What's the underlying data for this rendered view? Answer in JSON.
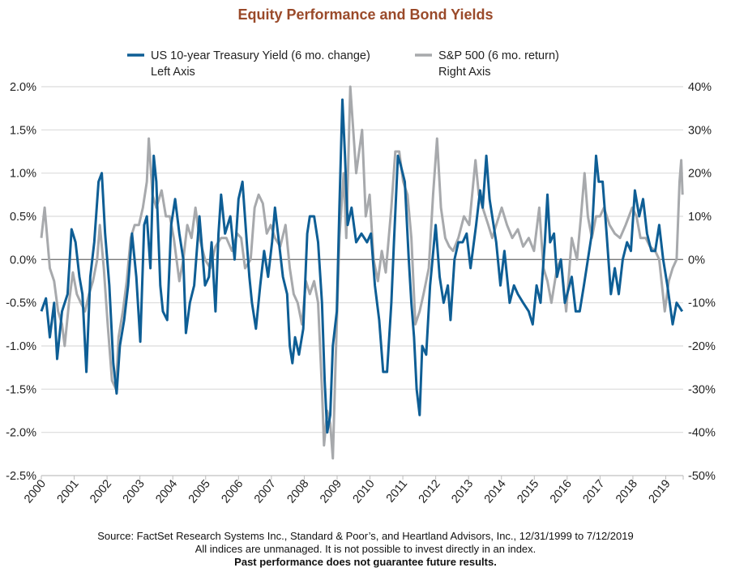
{
  "chart_data": {
    "type": "line",
    "title": "Equity Performance and Bond Yields",
    "legend_position": "top",
    "grid": true,
    "xlim": [
      2000,
      2019.53
    ],
    "x_ticks": [
      "2000",
      "2001",
      "2002",
      "2003",
      "2004",
      "2005",
      "2006",
      "2007",
      "2008",
      "2009",
      "2010",
      "2011",
      "2012",
      "2013",
      "2014",
      "2015",
      "2016",
      "2017",
      "2018",
      "2019"
    ],
    "left_axis": {
      "ylim": [
        -2.5,
        2.0
      ],
      "ticks": [
        "2.0%",
        "1.5%",
        "1.0%",
        "0.5%",
        "0.0%",
        "-0.5%",
        "-1.0%",
        "-1.5%",
        "-2.0%",
        "-2.5%"
      ]
    },
    "right_axis": {
      "ylim": [
        -50,
        40
      ],
      "ticks": [
        "40%",
        "30%",
        "20%",
        "10%",
        "0%",
        "-10%",
        "-20%",
        "-30%",
        "-40%",
        "-50%"
      ]
    },
    "series": [
      {
        "name": "US 10-year Treasury Yield (6 mo. change)",
        "axis_label": "Left Axis",
        "axis": "left",
        "color": "#0e5e95",
        "x": [
          2000.0,
          2000.14,
          2000.26,
          2000.39,
          2000.48,
          2000.63,
          2000.8,
          2000.92,
          2001.04,
          2001.16,
          2001.25,
          2001.37,
          2001.49,
          2001.61,
          2001.74,
          2001.84,
          2001.94,
          2002.07,
          2002.19,
          2002.29,
          2002.39,
          2002.52,
          2002.64,
          2002.76,
          2002.89,
          2003.01,
          2003.13,
          2003.21,
          2003.32,
          2003.42,
          2003.5,
          2003.62,
          2003.7,
          2003.83,
          2003.95,
          2004.07,
          2004.2,
          2004.32,
          2004.4,
          2004.52,
          2004.65,
          2004.81,
          2004.98,
          2005.1,
          2005.18,
          2005.3,
          2005.39,
          2005.47,
          2005.59,
          2005.75,
          2005.88,
          2006.0,
          2006.12,
          2006.25,
          2006.33,
          2006.41,
          2006.53,
          2006.66,
          2006.78,
          2006.9,
          2007.02,
          2007.11,
          2007.23,
          2007.35,
          2007.48,
          2007.56,
          2007.64,
          2007.72,
          2007.84,
          2007.97,
          2008.09,
          2008.17,
          2008.3,
          2008.42,
          2008.54,
          2008.62,
          2008.7,
          2008.79,
          2008.87,
          2008.99,
          2009.07,
          2009.16,
          2009.24,
          2009.32,
          2009.44,
          2009.58,
          2009.74,
          2009.91,
          2010.03,
          2010.15,
          2010.28,
          2010.4,
          2010.52,
          2010.65,
          2010.73,
          2010.85,
          2010.93,
          2011.06,
          2011.18,
          2011.26,
          2011.34,
          2011.42,
          2011.51,
          2011.59,
          2011.71,
          2011.83,
          2012.0,
          2012.12,
          2012.24,
          2012.37,
          2012.45,
          2012.57,
          2012.69,
          2012.82,
          2012.94,
          2013.06,
          2013.23,
          2013.35,
          2013.43,
          2013.54,
          2013.64,
          2013.76,
          2013.84,
          2013.97,
          2014.09,
          2014.25,
          2014.38,
          2014.5,
          2014.66,
          2014.83,
          2014.95,
          2015.07,
          2015.19,
          2015.32,
          2015.4,
          2015.48,
          2015.6,
          2015.69,
          2015.81,
          2015.93,
          2016.14,
          2016.26,
          2016.38,
          2016.51,
          2016.63,
          2016.75,
          2016.88,
          2016.96,
          2017.08,
          2017.2,
          2017.33,
          2017.45,
          2017.57,
          2017.69,
          2017.82,
          2017.94,
          2018.06,
          2018.19,
          2018.31,
          2018.43,
          2018.56,
          2018.68,
          2018.8,
          2018.92,
          2019.05,
          2019.21,
          2019.33,
          2019.5
        ],
        "values": [
          -0.6,
          -0.45,
          -0.9,
          -0.5,
          -1.15,
          -0.6,
          -0.4,
          0.35,
          0.2,
          -0.2,
          -0.4,
          -1.3,
          -0.2,
          0.2,
          0.9,
          1.0,
          0.3,
          -0.3,
          -1.2,
          -1.55,
          -1.0,
          -0.7,
          -0.3,
          0.3,
          -0.2,
          -0.95,
          0.4,
          0.5,
          -0.1,
          1.2,
          0.9,
          -0.3,
          -0.6,
          -0.7,
          0.4,
          0.7,
          0.3,
          0.0,
          -0.85,
          -0.5,
          -0.3,
          0.5,
          -0.3,
          -0.2,
          0.2,
          -0.6,
          0.3,
          0.75,
          0.3,
          0.5,
          0.0,
          0.7,
          0.9,
          0.2,
          -0.2,
          -0.5,
          -0.8,
          -0.3,
          0.1,
          -0.2,
          0.2,
          0.6,
          0.2,
          -0.2,
          -0.4,
          -1.0,
          -1.2,
          -0.9,
          -1.1,
          -0.8,
          0.3,
          0.5,
          0.5,
          0.2,
          -0.5,
          -1.4,
          -2.0,
          -1.8,
          -1.0,
          -0.6,
          0.6,
          1.85,
          1.2,
          0.4,
          0.6,
          0.2,
          0.3,
          0.2,
          0.3,
          -0.3,
          -0.7,
          -1.3,
          -1.3,
          -0.5,
          0.2,
          1.2,
          1.1,
          0.9,
          0.0,
          -0.5,
          -0.9,
          -1.5,
          -1.8,
          -1.0,
          -1.1,
          -0.3,
          0.4,
          -0.2,
          -0.5,
          -0.3,
          -0.7,
          0.0,
          0.2,
          0.2,
          0.3,
          -0.1,
          0.4,
          0.8,
          0.6,
          1.2,
          0.7,
          0.4,
          0.2,
          -0.3,
          0.1,
          -0.5,
          -0.3,
          -0.4,
          -0.5,
          -0.6,
          -0.75,
          -0.3,
          -0.5,
          0.2,
          0.75,
          0.2,
          0.3,
          -0.2,
          0.0,
          -0.5,
          -0.2,
          -0.6,
          -0.6,
          -0.3,
          0.0,
          0.3,
          1.2,
          0.9,
          0.9,
          0.3,
          -0.4,
          -0.1,
          -0.4,
          0.0,
          0.2,
          0.1,
          0.8,
          0.5,
          0.7,
          0.3,
          0.1,
          0.1,
          0.4,
          0.0,
          -0.3,
          -0.75,
          -0.5,
          -0.6
        ]
      },
      {
        "name": "S&P 500 (6 mo. return)",
        "axis_label": "Right Axis",
        "axis": "right",
        "color": "#a7a9ac",
        "x": [
          2000.0,
          2000.1,
          2000.18,
          2000.26,
          2000.39,
          2000.51,
          2000.63,
          2000.71,
          2000.84,
          2000.96,
          2001.08,
          2001.2,
          2001.33,
          2001.45,
          2001.57,
          2001.7,
          2001.78,
          2001.9,
          2002.02,
          2002.15,
          2002.27,
          2002.35,
          2002.48,
          2002.6,
          2002.72,
          2002.84,
          2002.97,
          2003.09,
          2003.21,
          2003.27,
          2003.38,
          2003.5,
          2003.66,
          2003.79,
          2003.91,
          2004.03,
          2004.2,
          2004.32,
          2004.44,
          2004.57,
          2004.69,
          2004.81,
          2004.98,
          2005.14,
          2005.3,
          2005.47,
          2005.63,
          2005.8,
          2005.96,
          2006.08,
          2006.2,
          2006.37,
          2006.49,
          2006.61,
          2006.74,
          2006.86,
          2006.98,
          2007.11,
          2007.27,
          2007.43,
          2007.56,
          2007.68,
          2007.8,
          2007.93,
          2008.05,
          2008.17,
          2008.3,
          2008.42,
          2008.54,
          2008.6,
          2008.7,
          2008.79,
          2008.87,
          2008.95,
          2009.07,
          2009.2,
          2009.28,
          2009.4,
          2009.58,
          2009.76,
          2009.87,
          2009.99,
          2010.11,
          2010.24,
          2010.36,
          2010.48,
          2010.65,
          2010.77,
          2010.89,
          2011.01,
          2011.14,
          2011.26,
          2011.38,
          2011.51,
          2011.63,
          2011.79,
          2011.92,
          2012.04,
          2012.16,
          2012.29,
          2012.41,
          2012.53,
          2012.69,
          2012.86,
          2013.02,
          2013.21,
          2013.31,
          2013.43,
          2013.6,
          2013.72,
          2013.84,
          2014.01,
          2014.17,
          2014.33,
          2014.5,
          2014.66,
          2014.83,
          2014.99,
          2015.15,
          2015.28,
          2015.4,
          2015.52,
          2015.69,
          2015.81,
          2015.97,
          2016.14,
          2016.3,
          2016.42,
          2016.53,
          2016.63,
          2016.75,
          2016.88,
          2017.0,
          2017.12,
          2017.29,
          2017.45,
          2017.61,
          2017.78,
          2017.98,
          2018.11,
          2018.23,
          2018.39,
          2018.52,
          2018.68,
          2018.8,
          2018.97,
          2019.09,
          2019.21,
          2019.33,
          2019.42,
          2019.47,
          2019.51
        ],
        "values": [
          5,
          12,
          5,
          -2,
          -5,
          -12,
          -15,
          -20,
          -10,
          -3,
          -8,
          -10,
          -12,
          -8,
          -5,
          0,
          8,
          -2,
          -15,
          -28,
          -30,
          -18,
          -12,
          -5,
          5,
          8,
          8,
          12,
          18,
          28,
          15,
          12,
          16,
          10,
          10,
          5,
          -5,
          0,
          8,
          5,
          12,
          5,
          0,
          -2,
          3,
          5,
          5,
          2,
          6,
          5,
          -2,
          0,
          12,
          15,
          13,
          6,
          8,
          5,
          3,
          8,
          -2,
          -8,
          -10,
          -15,
          -5,
          -8,
          -5,
          -10,
          -30,
          -43,
          -35,
          -38,
          -46,
          -25,
          5,
          20,
          5,
          40,
          20,
          30,
          10,
          15,
          0,
          -5,
          2,
          -3,
          12,
          25,
          25,
          18,
          15,
          5,
          -15,
          -12,
          -8,
          -2,
          15,
          28,
          12,
          5,
          3,
          2,
          5,
          10,
          8,
          23,
          15,
          12,
          8,
          5,
          8,
          12,
          8,
          5,
          7,
          3,
          5,
          2,
          12,
          -2,
          -5,
          -10,
          -2,
          0,
          -12,
          5,
          0,
          10,
          20,
          10,
          5,
          10,
          10,
          12,
          8,
          6,
          5,
          8,
          12,
          10,
          5,
          5,
          3,
          2,
          0,
          -12,
          -5,
          -2,
          0,
          18,
          23,
          15
        ]
      }
    ]
  },
  "footer": {
    "source": "Source: FactSet Research Systems Inc., Standard & Poor’s, and Heartland Advisors, Inc., 12/31/1999 to 7/12/2019",
    "disclaimer": "All indices are unmanaged. It is not possible to invest directly in an index.",
    "warning": "Past performance does not guarantee future results."
  }
}
